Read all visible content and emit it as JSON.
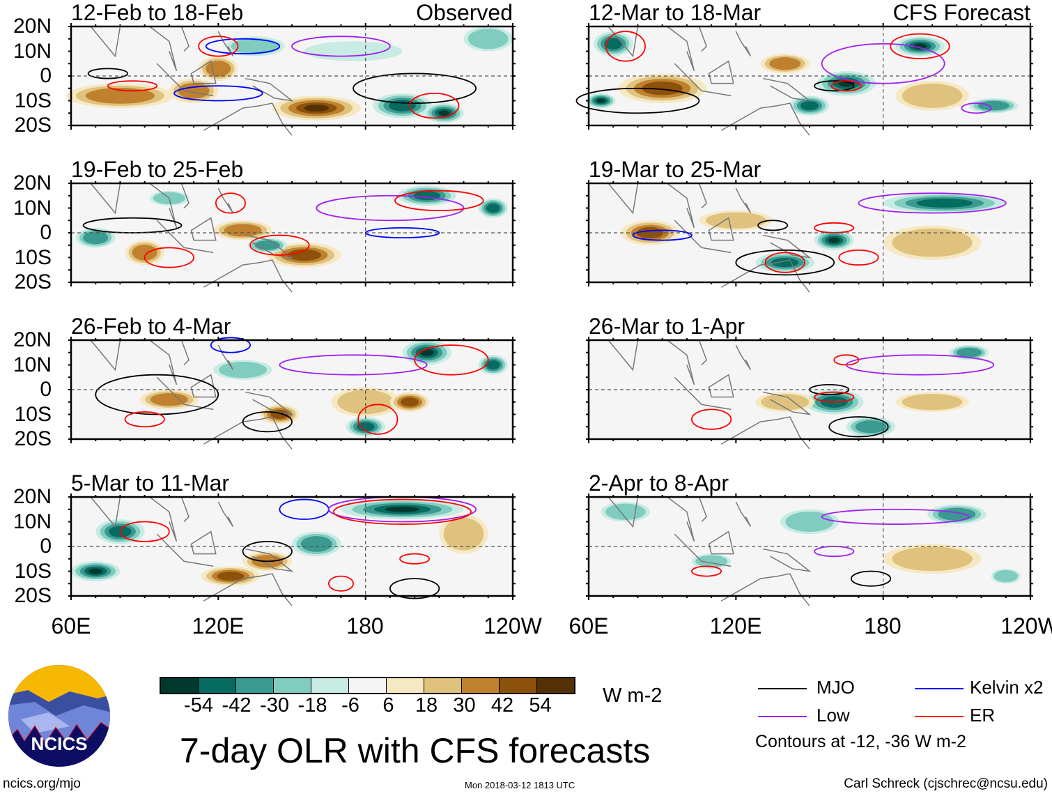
{
  "panels_left_label": "Observed",
  "panels_right_label": "CFS Forecast",
  "y_ticks": [
    "20N",
    "10N",
    "0",
    "10S",
    "20S"
  ],
  "x_ticks": [
    "60E",
    "120E",
    "180",
    "120W"
  ],
  "colors": {
    "scale": [
      "#01392f",
      "#066b61",
      "#3a9990",
      "#80cdc0",
      "#c8ebe4",
      "#f5f5f5",
      "#f6e8c3",
      "#dfc27d",
      "#bf812d",
      "#8c510a",
      "#543005"
    ],
    "mjo": "#000000",
    "kelvin": "#0000ff",
    "low": "#a020f0",
    "er": "#ff0000",
    "coast": "#777777"
  },
  "colorbar": {
    "ticks": [
      "-54",
      "-42",
      "-30",
      "-18",
      "-6",
      "6",
      "18",
      "30",
      "42",
      "54"
    ],
    "units": "W m-2"
  },
  "title": "7-day OLR with CFS forecasts",
  "legend": {
    "mjo": "MJO",
    "kelvin": "Kelvin x2",
    "low": "Low",
    "er": "ER",
    "note": "Contours at -12, -36 W m-2"
  },
  "footer": {
    "left": "ncics.org/mjo",
    "center": "Mon 2018-03-12 1813 UTC",
    "right": "Carl Schreck (cjschrec@ncsu.edu)"
  },
  "logo_text": "NCICS",
  "panels": [
    {
      "title": "12-Feb to 18-Feb",
      "kind": "observed",
      "blobs": [
        [
          80,
          -8,
          22,
          5,
          40
        ],
        [
          110,
          -6,
          10,
          5,
          30
        ],
        [
          160,
          -13,
          18,
          5,
          54
        ],
        [
          120,
          3,
          8,
          5,
          30
        ],
        [
          195,
          -12,
          12,
          5,
          -42
        ],
        [
          212,
          -15,
          8,
          4,
          -54
        ],
        [
          135,
          12,
          12,
          4,
          -18
        ],
        [
          230,
          15,
          10,
          5,
          -18
        ],
        [
          175,
          10,
          20,
          4,
          -6
        ]
      ],
      "contours": [
        [
          "mjo",
          75,
          1,
          8,
          2
        ],
        [
          "mjo",
          200,
          -5,
          25,
          6
        ],
        [
          "kelvin",
          130,
          12,
          15,
          3
        ],
        [
          "kelvin",
          120,
          -7,
          18,
          3
        ],
        [
          "low",
          170,
          12,
          20,
          4
        ],
        [
          "er",
          85,
          -4,
          10,
          2
        ],
        [
          "er",
          120,
          12,
          8,
          4
        ],
        [
          "er",
          208,
          -12,
          10,
          5
        ]
      ]
    },
    {
      "title": "19-Feb to 25-Feb",
      "blobs": [
        [
          155,
          -9,
          15,
          5,
          50
        ],
        [
          130,
          1,
          12,
          4,
          30
        ],
        [
          90,
          -8,
          8,
          5,
          30
        ],
        [
          140,
          -5,
          8,
          3,
          -30
        ],
        [
          205,
          15,
          12,
          4,
          -42
        ],
        [
          232,
          10,
          6,
          4,
          -42
        ],
        [
          70,
          -2,
          8,
          4,
          -30
        ],
        [
          100,
          14,
          8,
          3,
          -18
        ]
      ],
      "contours": [
        [
          "mjo",
          85,
          3,
          20,
          3
        ],
        [
          "kelvin",
          195,
          0,
          15,
          2
        ],
        [
          "low",
          190,
          10,
          30,
          5
        ],
        [
          "er",
          100,
          -10,
          10,
          4
        ],
        [
          "er",
          145,
          -5,
          12,
          4
        ],
        [
          "er",
          125,
          12,
          6,
          4
        ],
        [
          "er",
          210,
          13,
          18,
          4
        ]
      ]
    },
    {
      "title": "26-Feb to 4-Mar",
      "blobs": [
        [
          100,
          -4,
          12,
          4,
          30
        ],
        [
          145,
          -10,
          8,
          4,
          42
        ],
        [
          180,
          -5,
          14,
          6,
          18
        ],
        [
          198,
          -5,
          8,
          4,
          42
        ],
        [
          205,
          15,
          10,
          5,
          -54
        ],
        [
          180,
          -15,
          8,
          4,
          -42
        ],
        [
          130,
          8,
          12,
          4,
          -18
        ],
        [
          232,
          10,
          6,
          4,
          -42
        ]
      ],
      "contours": [
        [
          "mjo",
          95,
          -2,
          25,
          8
        ],
        [
          "mjo",
          140,
          -13,
          10,
          4
        ],
        [
          "kelvin",
          125,
          18,
          8,
          3
        ],
        [
          "low",
          175,
          10,
          30,
          4
        ],
        [
          "er",
          185,
          -12,
          8,
          6
        ],
        [
          "er",
          90,
          -12,
          8,
          3
        ],
        [
          "er",
          215,
          12,
          15,
          6
        ]
      ]
    },
    {
      "title": "5-Mar to 11-Mar",
      "blobs": [
        [
          125,
          -12,
          12,
          4,
          50
        ],
        [
          70,
          -10,
          10,
          4,
          -54
        ],
        [
          80,
          6,
          10,
          5,
          -42
        ],
        [
          195,
          15,
          25,
          4,
          -54
        ],
        [
          160,
          1,
          10,
          5,
          -30
        ],
        [
          140,
          -6,
          10,
          4,
          30
        ],
        [
          220,
          5,
          10,
          8,
          18
        ]
      ],
      "contours": [
        [
          "mjo",
          140,
          -2,
          10,
          4
        ],
        [
          "mjo",
          200,
          -17,
          10,
          4
        ],
        [
          "kelvin",
          155,
          15,
          10,
          4
        ],
        [
          "low",
          195,
          15,
          30,
          5
        ],
        [
          "er",
          195,
          14,
          28,
          5
        ],
        [
          "er",
          90,
          6,
          10,
          4
        ],
        [
          "er",
          200,
          -5,
          6,
          2
        ],
        [
          "er",
          170,
          -15,
          5,
          3
        ]
      ]
    },
    {
      "title": "12-Mar to 18-Mar",
      "kind": "forecast",
      "blobs": [
        [
          90,
          -5,
          18,
          6,
          42
        ],
        [
          140,
          5,
          10,
          4,
          30
        ],
        [
          165,
          -3,
          12,
          5,
          -54
        ],
        [
          150,
          -12,
          8,
          4,
          -42
        ],
        [
          195,
          12,
          10,
          4,
          -54
        ],
        [
          70,
          13,
          8,
          5,
          -42
        ],
        [
          65,
          -10,
          6,
          3,
          -54
        ],
        [
          225,
          -12,
          10,
          3,
          -30
        ],
        [
          200,
          -8,
          15,
          6,
          18
        ]
      ],
      "contours": [
        [
          "mjo",
          80,
          -10,
          25,
          5
        ],
        [
          "mjo",
          160,
          -4,
          8,
          2
        ],
        [
          "low",
          180,
          5,
          25,
          8
        ],
        [
          "er",
          75,
          12,
          8,
          6
        ],
        [
          "er",
          195,
          12,
          12,
          5
        ],
        [
          "er",
          165,
          -4,
          6,
          2
        ],
        [
          "low",
          218,
          -13,
          6,
          2
        ]
      ]
    },
    {
      "title": "19-Mar to 25-Mar",
      "blobs": [
        [
          85,
          0,
          12,
          5,
          42
        ],
        [
          205,
          12,
          25,
          4,
          -42
        ],
        [
          160,
          -3,
          8,
          4,
          -54
        ],
        [
          140,
          -12,
          12,
          4,
          -42
        ],
        [
          200,
          -4,
          20,
          7,
          18
        ],
        [
          120,
          5,
          15,
          4,
          18
        ]
      ],
      "contours": [
        [
          "mjo",
          140,
          -12,
          20,
          5
        ],
        [
          "mjo",
          135,
          3,
          6,
          2
        ],
        [
          "kelvin",
          90,
          -1,
          12,
          2
        ],
        [
          "low",
          200,
          12,
          30,
          4
        ],
        [
          "er",
          160,
          2,
          8,
          2
        ],
        [
          "er",
          140,
          -12,
          8,
          4
        ],
        [
          "er",
          170,
          -10,
          8,
          3
        ]
      ]
    },
    {
      "title": "26-Mar to 1-Apr",
      "blobs": [
        [
          160,
          -5,
          12,
          5,
          -42
        ],
        [
          175,
          -15,
          10,
          4,
          -30
        ],
        [
          200,
          -5,
          15,
          4,
          18
        ],
        [
          215,
          15,
          8,
          3,
          -30
        ],
        [
          140,
          -5,
          12,
          4,
          18
        ]
      ],
      "contours": [
        [
          "mjo",
          158,
          0,
          8,
          2
        ],
        [
          "mjo",
          170,
          -15,
          12,
          4
        ],
        [
          "low",
          195,
          10,
          30,
          4
        ],
        [
          "er",
          160,
          -3,
          8,
          2
        ],
        [
          "er",
          110,
          -12,
          8,
          4
        ],
        [
          "er",
          165,
          12,
          5,
          2
        ]
      ]
    },
    {
      "title": "2-Apr to 8-Apr",
      "blobs": [
        [
          75,
          14,
          10,
          4,
          -18
        ],
        [
          150,
          10,
          12,
          5,
          -18
        ],
        [
          210,
          13,
          12,
          4,
          -30
        ],
        [
          200,
          -5,
          20,
          6,
          18
        ],
        [
          110,
          -6,
          8,
          3,
          -18
        ],
        [
          230,
          -12,
          6,
          3,
          -18
        ]
      ],
      "contours": [
        [
          "mjo",
          175,
          -13,
          8,
          3
        ],
        [
          "low",
          185,
          12,
          30,
          3
        ],
        [
          "low",
          160,
          -2,
          8,
          2
        ],
        [
          "er",
          108,
          -10,
          6,
          2
        ]
      ]
    }
  ]
}
